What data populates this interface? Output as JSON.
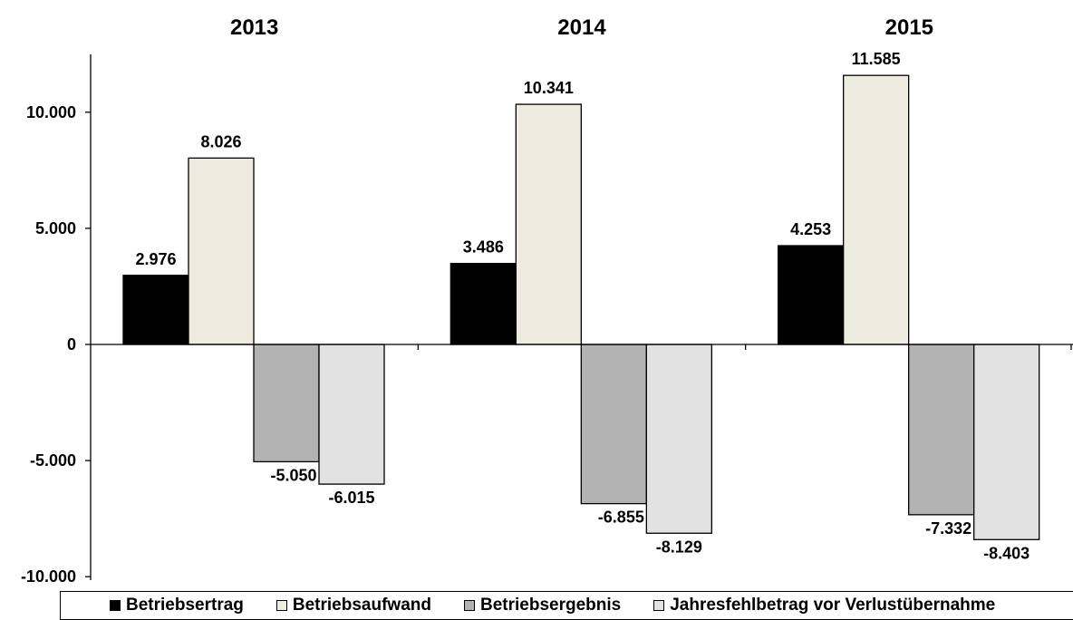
{
  "chart_data": {
    "type": "bar",
    "categories": [
      "2013",
      "2014",
      "2015"
    ],
    "series": [
      {
        "name": "Betriebsertrag",
        "values": [
          2976,
          3486,
          4253
        ],
        "labels": [
          "2.976",
          "3.486",
          "4.253"
        ],
        "color": "#000000"
      },
      {
        "name": "Betriebsaufwand",
        "values": [
          8026,
          10341,
          11585
        ],
        "labels": [
          "8.026",
          "10.341",
          "11.585"
        ],
        "color": "#eeebe0"
      },
      {
        "name": "Betriebsergebnis",
        "values": [
          -5050,
          -6855,
          -7332
        ],
        "labels": [
          "-5.050",
          "-6.855",
          "-7.332"
        ],
        "color": "#b3b3b3"
      },
      {
        "name": "Jahresfehlbetrag vor Verlustübernahme",
        "values": [
          -6015,
          -8129,
          -8403
        ],
        "labels": [
          "-6.015",
          "-8.129",
          "-8.403"
        ],
        "color": "#e2e2e2"
      }
    ],
    "ylim": [
      -10000,
      12500
    ],
    "yticks": [
      {
        "value": -10000,
        "label": "-10.000"
      },
      {
        "value": -5000,
        "label": "-5.000"
      },
      {
        "value": 0,
        "label": "0"
      },
      {
        "value": 5000,
        "label": "5.000"
      },
      {
        "value": 10000,
        "label": "10.000"
      }
    ],
    "grid": false,
    "legend_position": "bottom"
  }
}
